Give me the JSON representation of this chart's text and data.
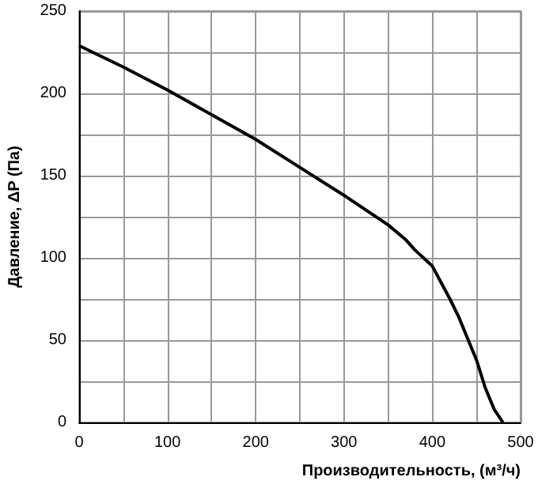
{
  "chart_data": {
    "type": "line",
    "xlabel": "Производительность, (м³/ч)",
    "ylabel": "Давление, ΔP (Па)",
    "x": [
      0,
      50,
      100,
      150,
      200,
      250,
      300,
      350,
      370,
      380,
      390,
      400,
      410,
      420,
      430,
      440,
      450,
      460,
      470,
      480
    ],
    "series": [
      {
        "color": "#000000",
        "values": [
          229,
          216,
          202,
          187,
          172,
          155,
          138,
          120,
          111,
          105,
          100,
          95,
          85,
          75,
          64,
          51,
          38,
          21,
          8,
          0
        ]
      }
    ],
    "xlim": [
      0,
      500
    ],
    "ylim": [
      0,
      250
    ],
    "xticks": [
      0,
      {
        "value": 50,
        "label": null
      },
      100,
      {
        "value": 150,
        "label": null
      },
      200,
      {
        "value": 250,
        "label": null
      },
      300,
      {
        "value": 350,
        "label": null
      },
      400,
      {
        "value": 450,
        "label": null
      },
      500
    ],
    "yticks": [
      0,
      {
        "value": 25,
        "label": null
      },
      50,
      {
        "value": 75,
        "label": null
      },
      100,
      {
        "value": 125,
        "label": null
      },
      150,
      {
        "value": 175,
        "label": null
      },
      200,
      {
        "value": 225,
        "label": null
      },
      250
    ],
    "grid": true,
    "marker": "none",
    "line_style": "solid"
  }
}
